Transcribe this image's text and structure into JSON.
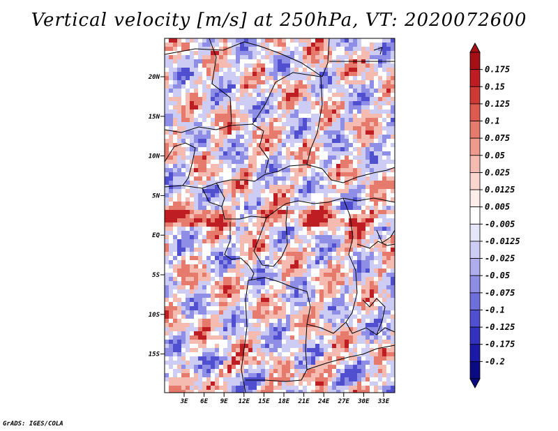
{
  "title": "Vertical velocity [m/s] at 250hPa, VT: 2020072600",
  "footer": "GrADS: IGES/COLA",
  "map": {
    "lat_labels": [
      "20N",
      "15N",
      "10N",
      "5N",
      "EQ",
      "5S",
      "10S",
      "15S"
    ],
    "lon_labels": [
      "3E",
      "6E",
      "9E",
      "12E",
      "15E",
      "18E",
      "21E",
      "24E",
      "27E",
      "30E",
      "33E"
    ]
  },
  "colorbar": {
    "labels": [
      "0.175",
      "0.15",
      "0.125",
      "0.1",
      "0.075",
      "0.05",
      "0.025",
      "0.0125",
      "0.005",
      "-0.005",
      "-0.0125",
      "-0.025",
      "-0.05",
      "-0.075",
      "-0.1",
      "-0.125",
      "-0.175",
      "-0.2"
    ],
    "colors": [
      "#a50f15",
      "#bd1d23",
      "#cf3a36",
      "#dc5a50",
      "#e67a6c",
      "#ee9a8c",
      "#f5bbb0",
      "#fad6cf",
      "#fdeeea",
      "#ffffff",
      "#e6e6fb",
      "#ccccf5",
      "#aeaeef",
      "#8e8ee6",
      "#6e6edc",
      "#4f4fcf",
      "#3232bf",
      "#1a1aa6",
      "#0a0a82"
    ]
  },
  "field_colors": {
    "red_light": "#f5bbb0",
    "red_mid": "#e67a6c",
    "red_dark": "#bd1d23",
    "blue_light": "#ccccf5",
    "blue_mid": "#8e8ee6",
    "blue_dark": "#4f4fcf",
    "neutral": "#ffffff"
  }
}
